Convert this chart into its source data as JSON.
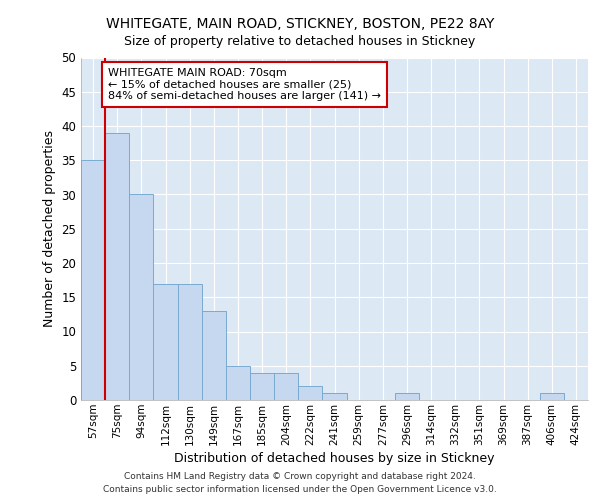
{
  "title1": "WHITEGATE, MAIN ROAD, STICKNEY, BOSTON, PE22 8AY",
  "title2": "Size of property relative to detached houses in Stickney",
  "xlabel": "Distribution of detached houses by size in Stickney",
  "ylabel": "Number of detached properties",
  "footer1": "Contains HM Land Registry data © Crown copyright and database right 2024.",
  "footer2": "Contains public sector information licensed under the Open Government Licence v3.0.",
  "bin_labels": [
    "57sqm",
    "75sqm",
    "94sqm",
    "112sqm",
    "130sqm",
    "149sqm",
    "167sqm",
    "185sqm",
    "204sqm",
    "222sqm",
    "241sqm",
    "259sqm",
    "277sqm",
    "296sqm",
    "314sqm",
    "332sqm",
    "351sqm",
    "369sqm",
    "387sqm",
    "406sqm",
    "424sqm"
  ],
  "bar_heights": [
    35,
    39,
    30,
    17,
    17,
    13,
    5,
    4,
    4,
    2,
    1,
    0,
    0,
    1,
    0,
    0,
    0,
    0,
    0,
    1,
    0
  ],
  "bar_color": "#c5d8f0",
  "bar_edge_color": "#7aaad0",
  "highlight_color": "#cc0000",
  "annotation_title": "WHITEGATE MAIN ROAD: 70sqm",
  "annotation_line1": "← 15% of detached houses are smaller (25)",
  "annotation_line2": "84% of semi-detached houses are larger (141) →",
  "annotation_box_color": "#ffffff",
  "annotation_box_edge": "#cc0000",
  "ylim": [
    0,
    50
  ],
  "yticks": [
    0,
    5,
    10,
    15,
    20,
    25,
    30,
    35,
    40,
    45,
    50
  ],
  "background_color": "#ffffff",
  "plot_bg_color": "#dce9f5",
  "grid_color": "#ffffff"
}
